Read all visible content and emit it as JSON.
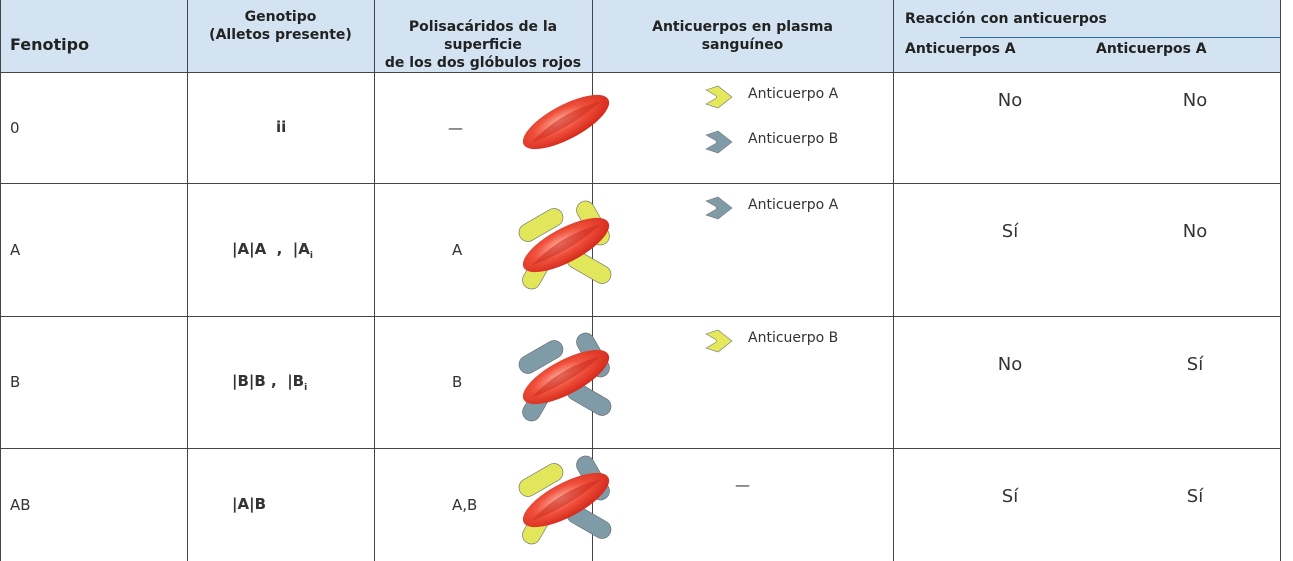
{
  "table": {
    "header": {
      "fenotipo": "Fenotipo",
      "genotipo": [
        "Genotipo",
        "(Alletos presente)"
      ],
      "polisacaridos": [
        "Polisacáridos de la superficie",
        "de los dos glóbulos rojos"
      ],
      "anticuerpos": [
        "Anticuerpos en plasma",
        "sanguíneo"
      ],
      "reaccion": "Reacción con anticuerpos",
      "reaccion_sub": [
        "Anticuerpos A",
        "Anticuerpos A"
      ]
    },
    "rows": [
      {
        "fenotipo": "0",
        "genotipo": {
          "main": "ii",
          "sub": null
        },
        "polisacaridos": "—",
        "anticuerpos": [
          {
            "label": "Anticuerpo A",
            "color": "#e4e85a"
          },
          {
            "label": "Anticuerpo B",
            "color": "#7f9ba8"
          }
        ],
        "reaccion": [
          "No",
          "No"
        ]
      },
      {
        "fenotipo": "A",
        "genotipo": {
          "main": "|A|A  ,  |A",
          "sub": "i"
        },
        "polisacaridos": "A",
        "anticuerpos": [
          {
            "label": "Anticuerpo A",
            "color": "#7f9ba8"
          }
        ],
        "reaccion": [
          "Sí",
          "No"
        ]
      },
      {
        "fenotipo": "B",
        "genotipo": {
          "main": "|B|B ,  |B",
          "sub": "i"
        },
        "polisacaridos": "B",
        "anticuerpos": [
          {
            "label": "Anticuerpo B",
            "color": "#e4e85a"
          }
        ],
        "reaccion": [
          "No",
          "Sí"
        ]
      },
      {
        "fenotipo": "AB",
        "genotipo": {
          "main": "|A|B",
          "sub": null
        },
        "polisacaridos": "A,B",
        "anticuerpos": "—",
        "reaccion": [
          "Sí",
          "Sí"
        ]
      }
    ]
  }
}
